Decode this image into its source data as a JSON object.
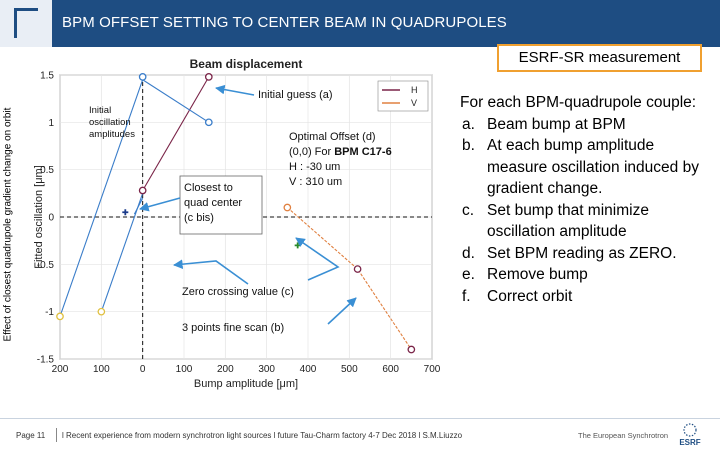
{
  "header": {
    "title": "BPM OFFSET SETTING TO CENTER BEAM IN QUADRUPOLES",
    "badge": "ESRF-SR measurement"
  },
  "side_label": "Effect of closest quadrupole gradient change on orbit",
  "chart_data": {
    "type": "line",
    "title": "Beam displacement",
    "xlabel": "Bump amplitude [μm]",
    "ylabel": "Fitted oscillation [μm]",
    "xlim": [
      -200,
      700
    ],
    "ylim": [
      -1.5,
      1.5
    ],
    "xticks": [
      "200",
      "100",
      "0",
      "100",
      "200",
      "300",
      "400",
      "500",
      "600",
      "700"
    ],
    "yticks": [
      "1.5",
      "1",
      "0.5",
      "0",
      "-0.5",
      "-1",
      "-1.5"
    ],
    "grid": true,
    "legend": {
      "position": "top-right",
      "entries": [
        "H",
        "V"
      ]
    },
    "series": [
      {
        "name": "H",
        "color": "#7a2448",
        "points": [
          [
            0,
            0.28
          ],
          [
            160,
            1.48
          ]
        ]
      },
      {
        "name": "V",
        "color": "#e08040",
        "points": [
          [
            350,
            0.1
          ],
          [
            520,
            -0.55
          ],
          [
            650,
            -1.4
          ]
        ]
      },
      {
        "name": "",
        "color": "#3a7dc9",
        "points": [
          [
            -200,
            -1.05
          ],
          [
            0,
            1.45
          ]
        ]
      },
      {
        "name": "",
        "color": "#3a7dc9",
        "points": [
          [
            0,
            1.45
          ],
          [
            160,
            1.0
          ]
        ]
      },
      {
        "name": "",
        "color": "#3a7dc9",
        "points": [
          [
            -100,
            -1.0
          ],
          [
            0,
            0.25
          ]
        ]
      },
      {
        "name": "",
        "color": "#3a7dc9",
        "points": [
          [
            -20,
            0.03
          ],
          [
            0,
            0.2
          ]
        ]
      }
    ],
    "markers": [
      {
        "x": 0,
        "y": 1.48,
        "color": "#3a7dc9"
      },
      {
        "x": 160,
        "y": 1.0,
        "color": "#3a7dc9"
      },
      {
        "x": 160,
        "y": 1.48,
        "color": "#7a2448"
      },
      {
        "x": 0,
        "y": 0.28,
        "color": "#7a2448"
      },
      {
        "x": -200,
        "y": -1.05,
        "color": "#e0c040"
      },
      {
        "x": -100,
        "y": -1.0,
        "color": "#e0c040"
      },
      {
        "x": 350,
        "y": 0.1,
        "color": "#e08040"
      },
      {
        "x": 520,
        "y": -0.55,
        "color": "#7a2448"
      },
      {
        "x": 650,
        "y": -1.4,
        "color": "#7a2448"
      }
    ],
    "crosses": [
      {
        "x": -42,
        "y": 0.05,
        "color": "#1a3a8a"
      },
      {
        "x": 375,
        "y": -0.3,
        "color": "#2a8a2a"
      }
    ],
    "vline_x": 0,
    "hline_y": 0
  },
  "annotations": {
    "initial_guess": "Initial guess (a)",
    "initial_osc": [
      "Initial",
      "oscillation",
      "amplitudes"
    ],
    "optimal": [
      "Optimal Offset (d)",
      "(0,0) For BPM C17-6",
      "H : -30 um",
      "V : 310 um"
    ],
    "optimal_bold": "BPM C17-6",
    "closest": [
      "Closest to",
      "quad center",
      "(c bis)"
    ],
    "zero_crossing": "Zero crossing value (c)",
    "fine_scan": "3 points fine scan (b)"
  },
  "steps": {
    "intro": "For each BPM-quadrupole couple:",
    "items": [
      {
        "marker": "a.",
        "text": "Beam bump at BPM"
      },
      {
        "marker": "b.",
        "text": "At each bump amplitude measure oscillation induced by gradient change."
      },
      {
        "marker": "c.",
        "text": "Set bump that minimize oscillation amplitude"
      },
      {
        "marker": "d.",
        "text": "Set BPM reading as ZERO."
      },
      {
        "marker": "e.",
        "text": "Remove bump"
      },
      {
        "marker": "f.",
        "text": "Correct orbit"
      }
    ]
  },
  "footer": {
    "page": "Page 11",
    "ref": "l Recent experience from modern synchrotron light sources l future Tau-Charm factory 4-7 Dec 2018 l S.M.Liuzzo",
    "org": "The European Synchrotron",
    "brand": "ESRF"
  },
  "colors": {
    "header_bg": "#1e4d82",
    "badge_border": "#f0a030",
    "arrow": "#3a8fd4"
  }
}
